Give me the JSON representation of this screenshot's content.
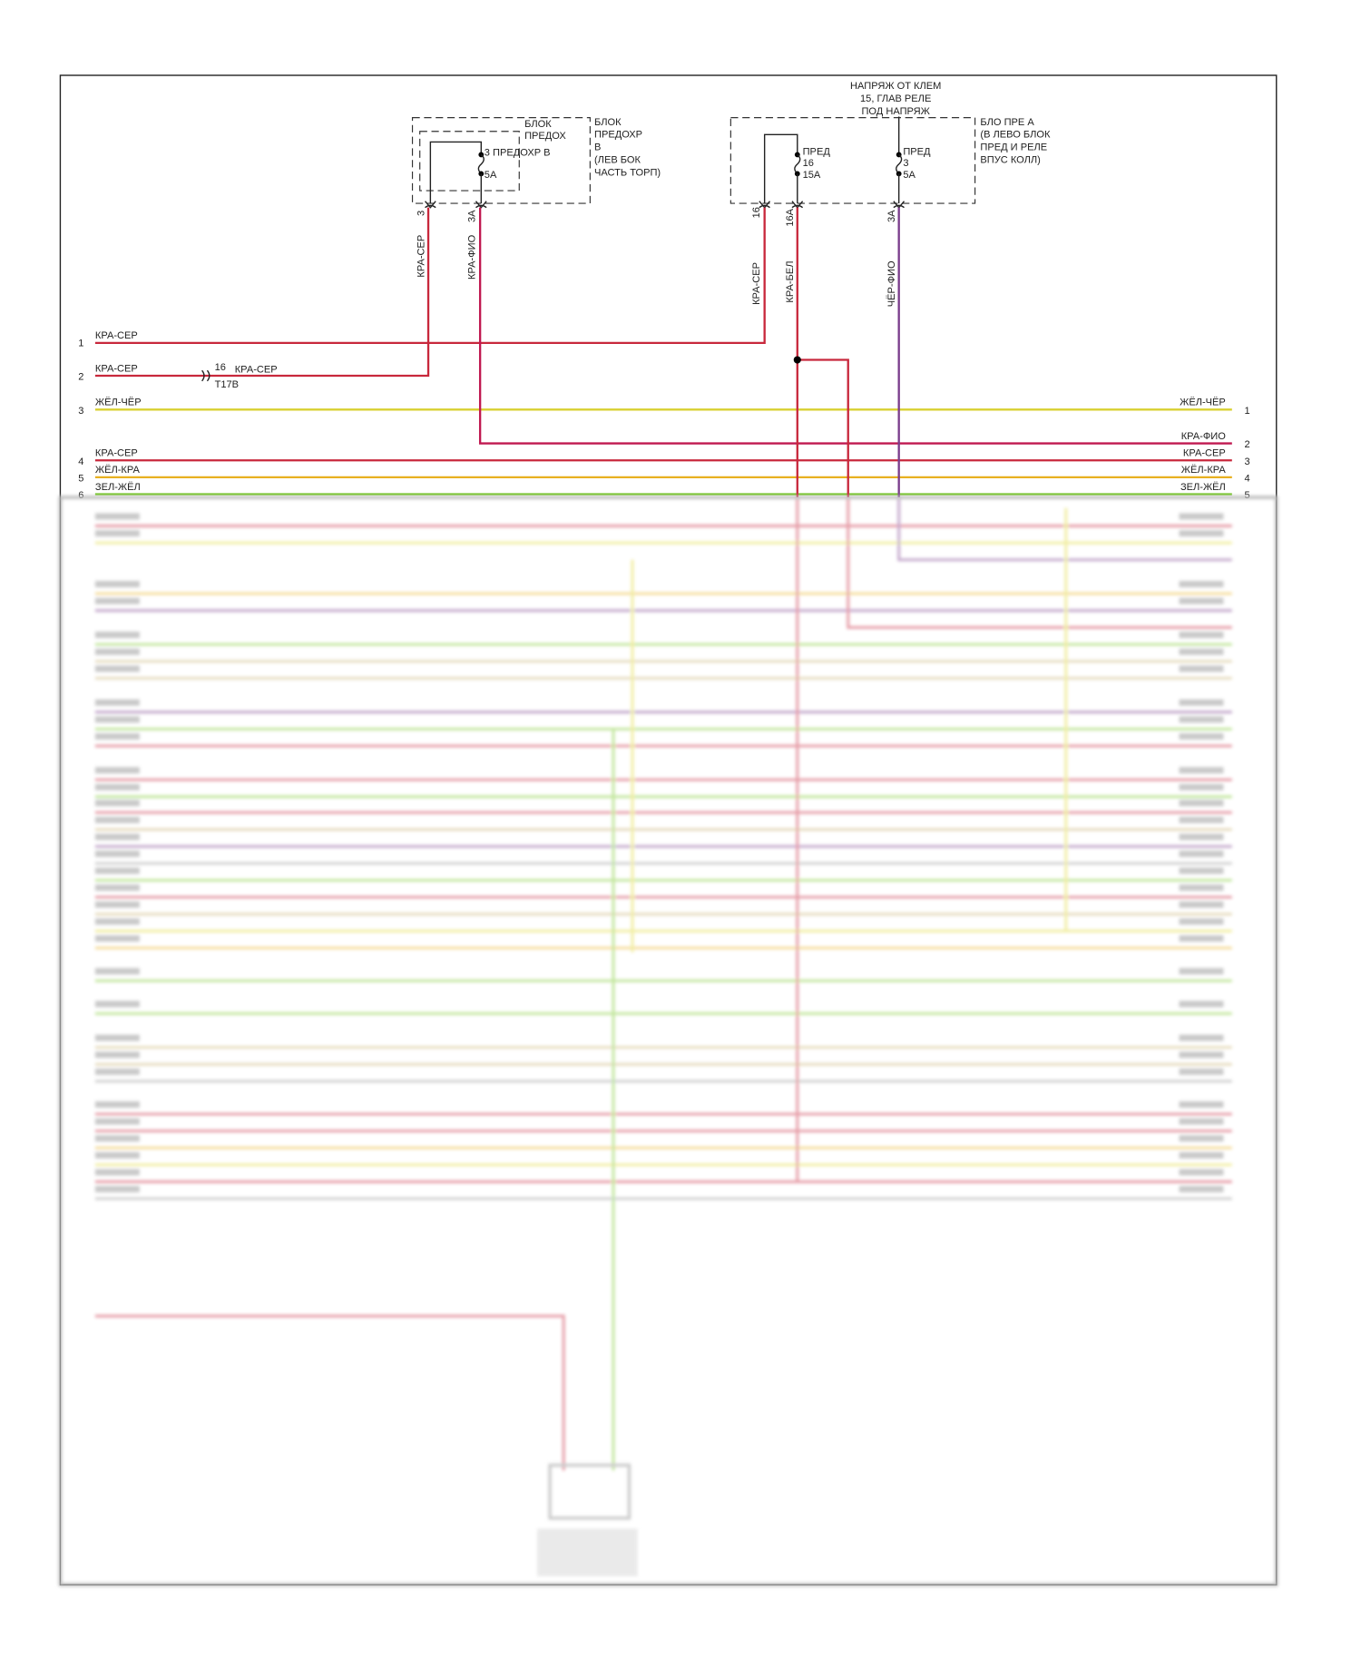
{
  "fuse_block_b": {
    "title": [
      "БЛОК",
      "ПРЕДОХР",
      "В",
      "(ЛЕВ БОК",
      "ЧАСТЬ ТОРП)"
    ],
    "inner_title": [
      "БЛОК",
      "ПРЕДОХ"
    ],
    "fuse_label": "3 ПРЕДОХР В",
    "fuse_rating": "5A",
    "pins": [
      "3",
      "3A"
    ],
    "wires": [
      "КРА-СЕР",
      "КРА-ФИО"
    ]
  },
  "fuse_block_a": {
    "supply_label": [
      "НАПРЯЖ ОТ КЛЕМ",
      "15, ГЛАВ РЕЛЕ",
      "ПОД НАПРЯЖ"
    ],
    "title": [
      "БЛО ПРЕ А",
      "(В ЛЕВО БЛОК",
      "ПРЕД И РЕЛЕ",
      "ВПУС КОЛЛ)"
    ],
    "fuse16": [
      "ПРЕД",
      "16",
      "15A"
    ],
    "fuse3": [
      "ПРЕД",
      "3",
      "5A"
    ],
    "pins": [
      "16",
      "16A",
      "3A"
    ],
    "wires": [
      "КРА-СЕР",
      "КРА-БЕЛ",
      "ЧЁР-ФИО"
    ]
  },
  "connector": {
    "pin": "16",
    "name": "T17B",
    "wire": "КРА-СЕР"
  },
  "left_rows": [
    {
      "num": "1",
      "wire": "КРА-СЕР"
    },
    {
      "num": "2",
      "wire": "КРА-СЕР"
    },
    {
      "num": "3",
      "wire": "ЖЁЛ-ЧЁР"
    },
    {
      "num": "4",
      "wire": "КРА-СЕР"
    },
    {
      "num": "5",
      "wire": "ЖЁЛ-КРА"
    },
    {
      "num": "6",
      "wire": "ЗЕЛ-ЖЁЛ"
    }
  ],
  "right_rows": [
    {
      "num": "1",
      "wire": "ЖЁЛ-ЧЁР"
    },
    {
      "num": "2",
      "wire": "КРА-ФИО"
    },
    {
      "num": "3",
      "wire": "КРА-СЕР"
    },
    {
      "num": "4",
      "wire": "ЖЁЛ-КРА"
    },
    {
      "num": "5",
      "wire": "ЗЕЛ-ЖЁЛ"
    }
  ],
  "colors": {
    "red": "#c8283c",
    "magenta": "#c01850",
    "yellow": "#e0d830",
    "orange": "#e8b020",
    "green": "#78c828",
    "purple": "#7a3c8c",
    "gray": "#999999",
    "tan": "#c8b070"
  }
}
